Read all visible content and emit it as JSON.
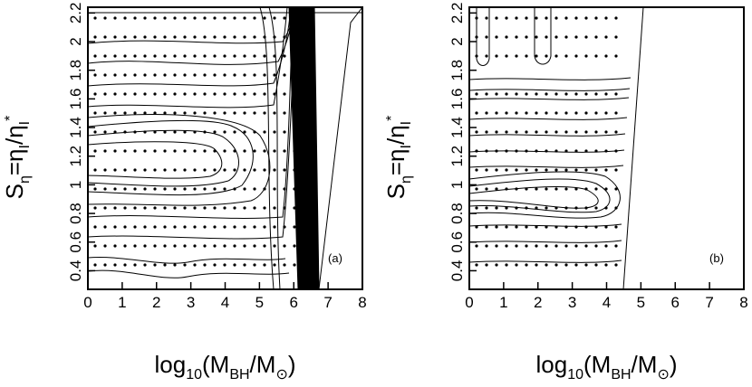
{
  "chart_data": [
    {
      "type": "contour",
      "panel_label": "(a)",
      "xlabel": [
        "log",
        "10",
        "(M",
        "BH",
        "/M",
        "⊙",
        ")"
      ],
      "ylabel": [
        "S",
        "η",
        "=η",
        "I",
        "/η",
        "I",
        "*"
      ],
      "xlim": [
        0,
        8
      ],
      "xticks": [
        0,
        1,
        2,
        3,
        4,
        5,
        6,
        7,
        8
      ],
      "ylim": [
        0.27,
        2.24
      ],
      "yticks": [
        0.4,
        0.6,
        0.8,
        1,
        1.2,
        1.4,
        1.6,
        1.8,
        2,
        2.2
      ]
    },
    {
      "type": "contour",
      "panel_label": "(b)",
      "xlabel": [
        "log",
        "10",
        "(M",
        "BH",
        "/M",
        "⊙",
        ")"
      ],
      "ylabel": [
        "S",
        "η",
        "=η",
        "I",
        "/η",
        "I",
        "*"
      ],
      "xlim": [
        0,
        8
      ],
      "xticks": [
        0,
        1,
        2,
        3,
        4,
        5,
        6,
        7,
        8
      ],
      "ylim": [
        0.27,
        2.24
      ],
      "yticks": [
        0.4,
        0.6,
        0.8,
        1,
        1.2,
        1.4,
        1.6,
        1.8,
        2,
        2.2
      ]
    }
  ]
}
